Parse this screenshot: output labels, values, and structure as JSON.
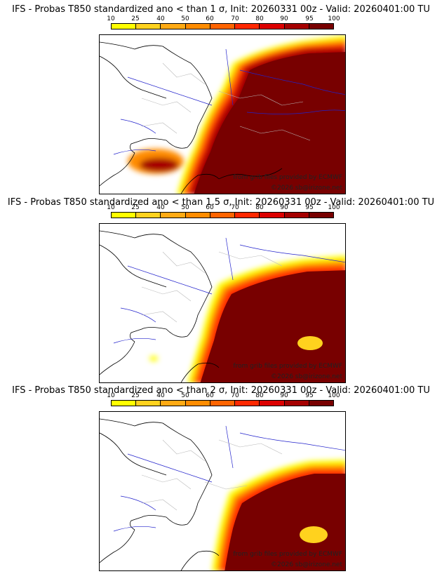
{
  "colorbar": {
    "ticks": [
      "10",
      "25",
      "40",
      "50",
      "60",
      "70",
      "80",
      "90",
      "95",
      "100"
    ],
    "colors": [
      "#ffff00",
      "#ffd21e",
      "#ffaa14",
      "#ff8c00",
      "#ff6400",
      "#ff2800",
      "#dc0000",
      "#a50000",
      "#780000"
    ]
  },
  "panels": [
    {
      "title": "IFS - Probas T850  standardized ano < than 1 σ, Init: 20260331 00z - Valid: 20260401:00 TU",
      "credit_source": "from grib files provided by ECMWF",
      "credit_copy": "©2026 sb@irizone.net"
    },
    {
      "title": "IFS - Probas T850  standardized ano < than 1.5 σ, Init: 20260331 00z - Valid: 20260401:00 TU",
      "credit_source": "from grib files provided by ECMWF",
      "credit_copy": "©2026 sb@irizone.net"
    },
    {
      "title": "IFS - Probas T850  standardized ano < than 2 σ, Init: 20260331 00z - Valid: 20260401:00 TU",
      "credit_source": "from grib files provided by ECMWF",
      "credit_copy": "©2026 sb@irizone.net"
    }
  ]
}
